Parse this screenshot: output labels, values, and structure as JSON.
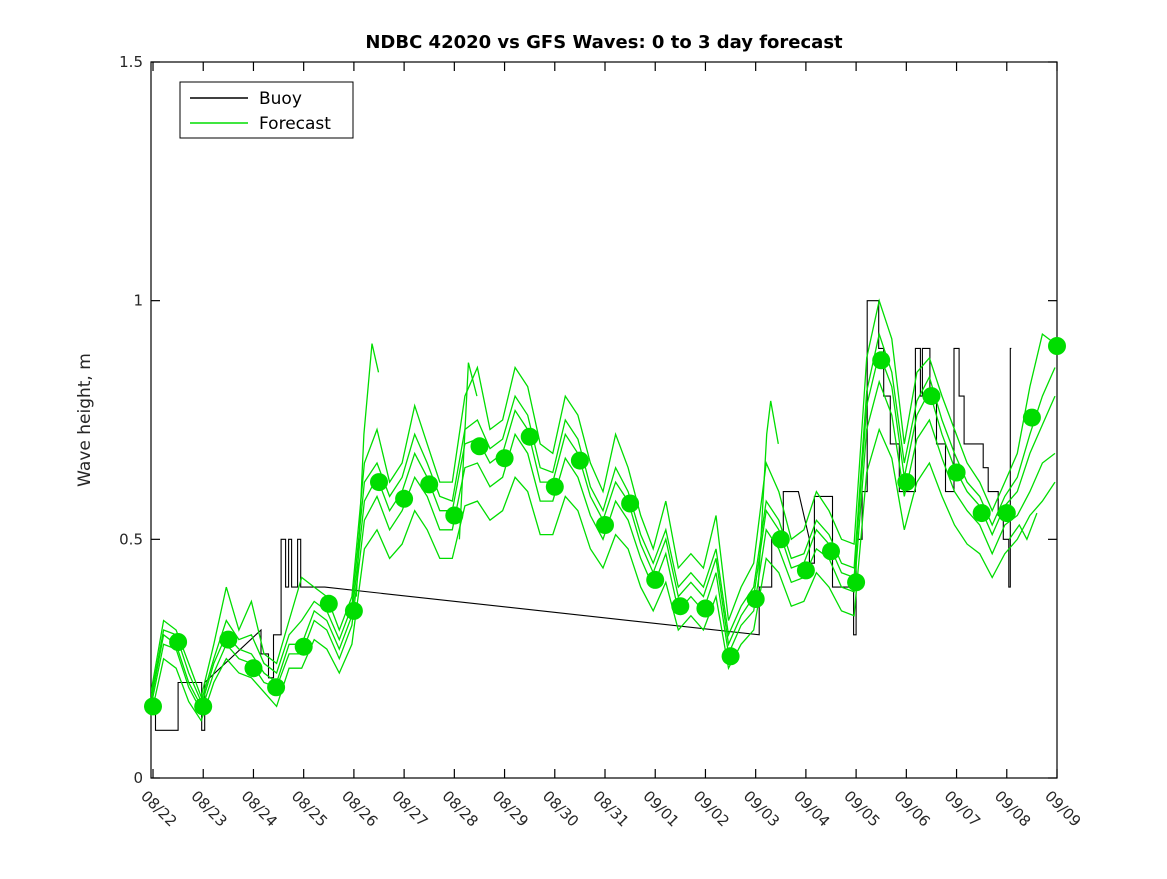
{
  "figure": {
    "title": "NDBC 42020 vs GFS Waves: 0 to 3 day forecast",
    "background": "#ffffff"
  },
  "axes": {
    "ylabel": "Wave height, m",
    "x_tick_labels": [
      "08/22",
      "08/23",
      "08/24",
      "08/25",
      "08/26",
      "08/27",
      "08/28",
      "08/29",
      "08/30",
      "08/31",
      "09/01",
      "09/02",
      "09/03",
      "09/04",
      "09/05",
      "09/06",
      "09/07",
      "09/08",
      "09/09"
    ],
    "y_tick_labels": [
      "0",
      "0.5",
      "1",
      "1.5"
    ],
    "y_tick_values": [
      0,
      0.5,
      1,
      1.5
    ],
    "y_range": [
      0,
      1.5
    ],
    "x_range_days": [
      -0.04,
      18
    ],
    "box": true,
    "grid": false
  },
  "legend": {
    "position": "top-left",
    "items": [
      {
        "label": "Buoy",
        "color": "#000000"
      },
      {
        "label": "Forecast",
        "color": "#00dd00"
      }
    ]
  },
  "colors": {
    "buoy": "#000000",
    "forecast": "#00dd00",
    "axis": "#000000"
  },
  "chart_data": {
    "type": "line",
    "title": "NDBC 42020 vs GFS Waves: 0 to 3 day forecast",
    "xlabel": "",
    "ylabel": "Wave height, m",
    "x_unit": "days since 08/22 00:00",
    "ylim": [
      0,
      1.5
    ],
    "x_categories_days": [
      "08/22",
      "08/23",
      "08/24",
      "08/25",
      "08/26",
      "08/27",
      "08/28",
      "08/29",
      "08/30",
      "08/31",
      "09/01",
      "09/02",
      "09/03",
      "09/04",
      "09/05",
      "09/06",
      "09/07",
      "09/08",
      "09/09"
    ],
    "legend_position": "top-left",
    "buoy": {
      "name": "Buoy",
      "color": "#000000",
      "points": [
        [
          -0.04,
          0.2
        ],
        [
          -0.04,
          0.15
        ],
        [
          0.05,
          0.15
        ],
        [
          0.05,
          0.1
        ],
        [
          0.5,
          0.1
        ],
        [
          0.5,
          0.2
        ],
        [
          0.97,
          0.2
        ],
        [
          0.97,
          0.1
        ],
        [
          1.03,
          0.1
        ],
        [
          1.03,
          0.2
        ],
        [
          2.15,
          0.31
        ],
        [
          2.15,
          0.26
        ],
        [
          2.3,
          0.26
        ],
        [
          2.3,
          0.21
        ],
        [
          2.4,
          0.21
        ],
        [
          2.4,
          0.3
        ],
        [
          2.55,
          0.3
        ],
        [
          2.55,
          0.5
        ],
        [
          2.64,
          0.5
        ],
        [
          2.64,
          0.4
        ],
        [
          2.7,
          0.4
        ],
        [
          2.7,
          0.5
        ],
        [
          2.76,
          0.5
        ],
        [
          2.76,
          0.4
        ],
        [
          2.88,
          0.4
        ],
        [
          2.88,
          0.5
        ],
        [
          2.94,
          0.5
        ],
        [
          2.94,
          0.4
        ],
        [
          3.42,
          0.4
        ],
        [
          12.07,
          0.3
        ],
        [
          12.07,
          0.4
        ],
        [
          12.32,
          0.4
        ],
        [
          12.32,
          0.5
        ],
        [
          12.55,
          0.5
        ],
        [
          12.55,
          0.6
        ],
        [
          12.85,
          0.6
        ],
        [
          13.07,
          0.5
        ],
        [
          13.07,
          0.45
        ],
        [
          13.17,
          0.45
        ],
        [
          13.17,
          0.59
        ],
        [
          13.53,
          0.59
        ],
        [
          13.53,
          0.4
        ],
        [
          13.95,
          0.4
        ],
        [
          13.95,
          0.3
        ],
        [
          14.0,
          0.3
        ],
        [
          14.0,
          0.5
        ],
        [
          14.12,
          0.5
        ],
        [
          14.12,
          0.6
        ],
        [
          14.22,
          0.6
        ],
        [
          14.22,
          1.0
        ],
        [
          14.45,
          1.0
        ],
        [
          14.45,
          0.9
        ],
        [
          14.55,
          0.9
        ],
        [
          14.55,
          0.8
        ],
        [
          14.68,
          0.8
        ],
        [
          14.68,
          0.7
        ],
        [
          14.86,
          0.7
        ],
        [
          14.86,
          0.6
        ],
        [
          15.18,
          0.6
        ],
        [
          15.18,
          0.9
        ],
        [
          15.28,
          0.9
        ],
        [
          15.28,
          0.8
        ],
        [
          15.32,
          0.8
        ],
        [
          15.32,
          0.9
        ],
        [
          15.47,
          0.9
        ],
        [
          15.47,
          0.8
        ],
        [
          15.6,
          0.8
        ],
        [
          15.6,
          0.7
        ],
        [
          15.78,
          0.7
        ],
        [
          15.78,
          0.6
        ],
        [
          15.95,
          0.6
        ],
        [
          15.95,
          0.9
        ],
        [
          16.05,
          0.9
        ],
        [
          16.05,
          0.8
        ],
        [
          16.15,
          0.8
        ],
        [
          16.15,
          0.7
        ],
        [
          16.53,
          0.7
        ],
        [
          16.53,
          0.65
        ],
        [
          16.63,
          0.65
        ],
        [
          16.63,
          0.6
        ],
        [
          16.83,
          0.6
        ],
        [
          16.83,
          0.55
        ],
        [
          16.93,
          0.55
        ],
        [
          16.93,
          0.5
        ],
        [
          17.04,
          0.5
        ],
        [
          17.04,
          0.4
        ],
        [
          17.07,
          0.4
        ],
        [
          17.07,
          0.9
        ],
        [
          17.09,
          0.9
        ]
      ]
    },
    "forecast": {
      "name": "Forecast",
      "color": "#00dd00",
      "strand_t0": -0.04,
      "strand_dt": 0.25,
      "strands": [
        [
          0.18,
          0.33,
          0.31,
          0.24,
          0.17,
          0.28,
          0.4,
          0.31,
          0.37,
          0.26,
          0.24,
          0.33,
          0.42,
          0.4,
          0.38,
          0.31,
          0.38,
          0.66,
          0.73,
          0.62,
          0.66,
          0.78,
          0.7,
          0.62,
          0.62,
          0.8,
          0.86,
          0.73,
          0.75,
          0.86,
          0.82,
          0.7,
          0.68,
          0.8,
          0.76,
          0.66,
          0.6,
          0.72,
          0.65,
          0.55,
          0.48,
          0.58,
          0.44,
          0.47,
          0.44,
          0.55,
          0.33,
          0.4,
          0.45,
          0.66,
          0.6,
          0.5,
          0.52,
          0.6,
          0.56,
          0.5,
          0.49,
          0.88,
          1.0,
          0.92,
          0.7,
          0.85,
          0.88,
          0.8,
          0.73,
          0.66,
          0.62,
          0.56,
          0.62,
          0.68,
          0.82,
          0.93,
          0.91
        ],
        [
          0.17,
          0.31,
          0.3,
          0.22,
          0.16,
          0.25,
          0.33,
          0.29,
          0.3,
          0.24,
          0.22,
          0.3,
          0.33,
          0.37,
          0.35,
          0.29,
          0.36,
          0.62,
          0.66,
          0.59,
          0.63,
          0.72,
          0.66,
          0.59,
          0.58,
          0.73,
          0.75,
          0.69,
          0.71,
          0.8,
          0.76,
          0.65,
          0.64,
          0.75,
          0.71,
          0.61,
          0.56,
          0.65,
          0.6,
          0.51,
          0.45,
          0.52,
          0.4,
          0.43,
          0.4,
          0.48,
          0.3,
          0.36,
          0.4,
          0.58,
          0.54,
          0.46,
          0.47,
          0.54,
          0.51,
          0.45,
          0.44,
          0.81,
          0.93,
          0.85,
          0.66,
          0.79,
          0.84,
          0.75,
          0.68,
          0.62,
          0.59,
          0.53,
          0.59,
          0.63,
          0.72,
          0.8,
          0.86
        ],
        [
          0.16,
          0.3,
          0.28,
          0.2,
          0.15,
          0.24,
          0.3,
          0.27,
          0.26,
          0.22,
          0.2,
          0.28,
          0.28,
          0.35,
          0.33,
          0.27,
          0.34,
          0.58,
          0.63,
          0.56,
          0.6,
          0.68,
          0.63,
          0.56,
          0.56,
          0.7,
          0.71,
          0.66,
          0.68,
          0.77,
          0.73,
          0.62,
          0.62,
          0.72,
          0.68,
          0.59,
          0.54,
          0.62,
          0.58,
          0.49,
          0.43,
          0.5,
          0.38,
          0.41,
          0.38,
          0.46,
          0.28,
          0.34,
          0.38,
          0.56,
          0.52,
          0.44,
          0.45,
          0.52,
          0.49,
          0.43,
          0.42,
          0.78,
          0.89,
          0.82,
          0.63,
          0.76,
          0.81,
          0.72,
          0.65,
          0.6,
          0.57,
          0.51,
          0.57,
          0.6,
          0.68,
          0.74,
          0.8
        ],
        [
          0.15,
          0.28,
          0.27,
          0.19,
          0.14,
          0.22,
          0.28,
          0.25,
          0.24,
          0.2,
          0.19,
          0.26,
          0.26,
          0.33,
          0.31,
          0.25,
          0.32,
          0.54,
          0.59,
          0.52,
          0.56,
          0.63,
          0.59,
          0.52,
          0.52,
          0.65,
          0.66,
          0.61,
          0.63,
          0.72,
          0.68,
          0.58,
          0.58,
          0.67,
          0.63,
          0.55,
          0.5,
          0.58,
          0.54,
          0.46,
          0.4,
          0.47,
          0.35,
          0.38,
          0.35,
          0.43,
          0.26,
          0.32,
          0.35,
          0.52,
          0.48,
          0.41,
          0.42,
          0.48,
          0.46,
          0.4,
          0.39,
          0.73,
          0.83,
          0.76,
          0.59,
          0.71,
          0.75,
          0.67,
          0.6,
          0.56,
          0.53,
          0.47,
          0.53,
          0.55,
          0.6,
          0.66,
          0.68
        ],
        [
          0.13,
          0.25,
          0.23,
          0.16,
          0.12,
          0.2,
          0.25,
          0.22,
          0.21,
          0.18,
          0.15,
          0.23,
          0.23,
          0.29,
          0.27,
          0.22,
          0.28,
          0.48,
          0.52,
          0.46,
          0.49,
          0.56,
          0.52,
          0.46,
          0.46,
          0.57,
          0.58,
          0.54,
          0.56,
          0.63,
          0.6,
          0.51,
          0.51,
          0.59,
          0.56,
          0.48,
          0.44,
          0.51,
          0.48,
          0.4,
          0.35,
          0.41,
          0.31,
          0.34,
          0.31,
          0.38,
          0.23,
          0.28,
          0.31,
          0.46,
          0.43,
          0.36,
          0.37,
          0.43,
          0.4,
          0.35,
          0.34,
          0.64,
          0.73,
          0.67,
          0.52,
          0.62,
          0.66,
          0.59,
          0.53,
          0.49,
          0.47,
          0.42,
          0.47,
          0.5,
          0.55,
          0.58,
          0.62
        ]
      ],
      "dangling_segments": [
        [
          [
            4.05,
            0.38
          ],
          [
            4.2,
            0.72
          ],
          [
            4.36,
            0.91
          ],
          [
            4.49,
            0.85
          ]
        ],
        [
          [
            6.1,
            0.5
          ],
          [
            6.28,
            0.87
          ],
          [
            6.45,
            0.8
          ]
        ],
        [
          [
            12.05,
            0.4
          ],
          [
            12.22,
            0.72
          ],
          [
            12.3,
            0.79
          ],
          [
            12.45,
            0.7
          ]
        ],
        [
          [
            17.05,
            0.5
          ],
          [
            17.25,
            0.53
          ],
          [
            17.4,
            0.5
          ],
          [
            17.6,
            0.555
          ]
        ]
      ],
      "markers": [
        [
          0,
          0.15
        ],
        [
          0.5,
          0.285
        ],
        [
          1,
          0.15
        ],
        [
          1.5,
          0.29
        ],
        [
          2,
          0.23
        ],
        [
          2.45,
          0.19
        ],
        [
          3,
          0.275
        ],
        [
          3.5,
          0.365
        ],
        [
          4,
          0.35
        ],
        [
          4.5,
          0.62
        ],
        [
          5,
          0.585
        ],
        [
          5.5,
          0.615
        ],
        [
          6,
          0.55
        ],
        [
          6.5,
          0.695
        ],
        [
          7,
          0.67
        ],
        [
          7.5,
          0.715
        ],
        [
          8,
          0.61
        ],
        [
          8.5,
          0.665
        ],
        [
          9,
          0.53
        ],
        [
          9.5,
          0.575
        ],
        [
          10,
          0.415
        ],
        [
          10.5,
          0.36
        ],
        [
          11,
          0.355
        ],
        [
          11.5,
          0.255
        ],
        [
          12,
          0.375
        ],
        [
          12.5,
          0.5
        ],
        [
          13,
          0.435
        ],
        [
          13.5,
          0.475
        ],
        [
          14,
          0.41
        ],
        [
          14.5,
          0.875
        ],
        [
          15,
          0.62
        ],
        [
          15.5,
          0.8
        ],
        [
          16,
          0.64
        ],
        [
          16.5,
          0.555
        ],
        [
          17,
          0.555
        ],
        [
          17.5,
          0.755
        ],
        [
          18,
          0.905
        ]
      ],
      "marker_radius": 9
    }
  }
}
